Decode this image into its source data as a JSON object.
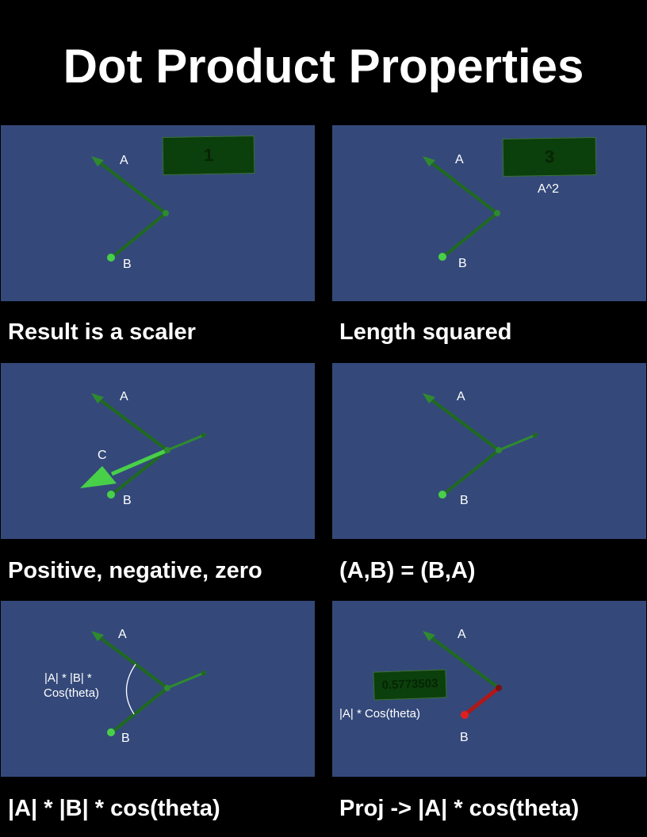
{
  "title": "Dot Product Properties",
  "panels": [
    {
      "caption": "Result is a scaler",
      "label_a": "A",
      "label_b": "B",
      "readout": "1"
    },
    {
      "caption": "Length squared",
      "label_a": "A",
      "label_b": "B",
      "readout": "3",
      "note": "A^2"
    },
    {
      "caption": "Positive, negative, zero",
      "label_a": "A",
      "label_b": "B",
      "label_c": "C"
    },
    {
      "caption": "(A,B) = (B,A)",
      "label_a": "A",
      "label_b": "B"
    },
    {
      "caption": "|A| * |B| * cos(theta)",
      "label_a": "A",
      "label_b": "B",
      "formula_line1": "|A| * |B| *",
      "formula_line2": "Cos(theta)"
    },
    {
      "caption": "Proj -> |A| * cos(theta)",
      "label_a": "A",
      "label_b": "B",
      "readout": "0.5773503",
      "formula": "|A| * Cos(theta)"
    }
  ],
  "colors": {
    "background": "#000000",
    "panel": "#34497a",
    "vector_dark": "#1f6a1f",
    "vector_light": "#3fbf3f",
    "plate": "#0b3f0b",
    "projection": "#b01818"
  }
}
